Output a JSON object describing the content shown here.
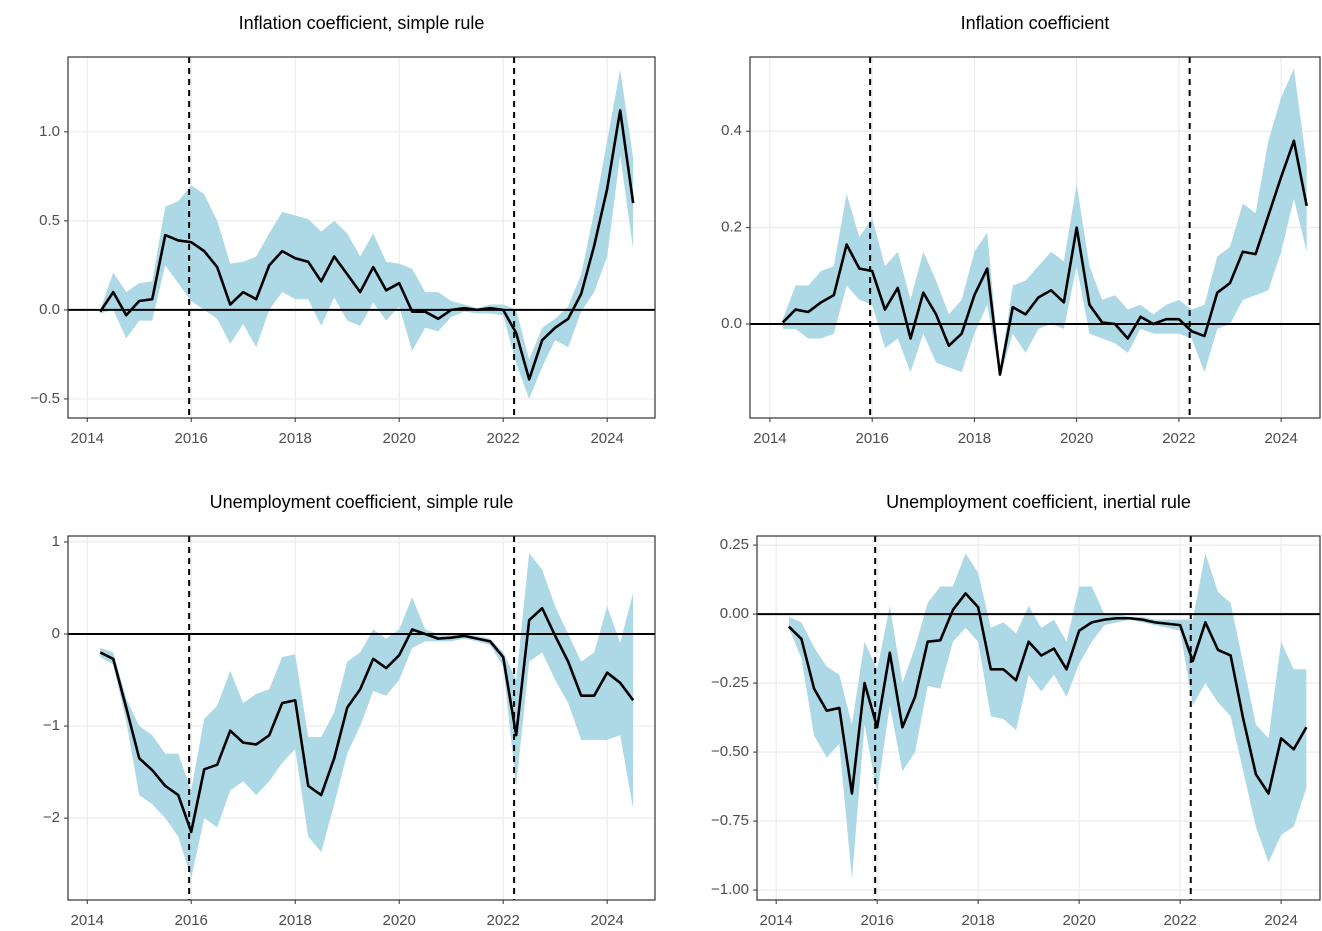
{
  "chart_data": [
    {
      "type": "line",
      "title": "Inflation coefficient, simple rule",
      "x": [
        2014.25,
        2014.5,
        2014.75,
        2015,
        2015.25,
        2015.5,
        2015.75,
        2016,
        2016.25,
        2016.5,
        2016.75,
        2017,
        2017.25,
        2017.5,
        2017.75,
        2018,
        2018.25,
        2018.5,
        2018.75,
        2019,
        2019.25,
        2019.5,
        2019.75,
        2020,
        2020.25,
        2020.5,
        2020.75,
        2021,
        2021.25,
        2021.5,
        2021.75,
        2022,
        2022.25,
        2022.5,
        2022.75,
        2023,
        2023.25,
        2023.5,
        2023.75,
        2024,
        2024.25,
        2024.5
      ],
      "values": [
        -0.01,
        0.1,
        -0.03,
        0.05,
        0.06,
        0.42,
        0.39,
        0.38,
        0.33,
        0.24,
        0.03,
        0.1,
        0.06,
        0.25,
        0.33,
        0.29,
        0.27,
        0.16,
        0.3,
        0.2,
        0.1,
        0.24,
        0.11,
        0.15,
        -0.01,
        -0.01,
        -0.05,
        0,
        0.01,
        0,
        0.01,
        0,
        -0.13,
        -0.39,
        -0.17,
        -0.1,
        -0.05,
        0.09,
        0.36,
        0.68,
        1.12,
        0.6
      ],
      "lower": [
        -0.02,
        0,
        -0.16,
        -0.06,
        -0.06,
        0.25,
        0.15,
        0.05,
        0,
        -0.05,
        -0.19,
        -0.08,
        -0.21,
        0,
        0.1,
        0.06,
        0.06,
        -0.09,
        0.07,
        -0.06,
        -0.09,
        0.04,
        -0.06,
        0.02,
        -0.23,
        -0.1,
        -0.12,
        -0.04,
        -0.01,
        -0.02,
        -0.02,
        -0.03,
        -0.3,
        -0.5,
        -0.32,
        -0.17,
        -0.21,
        -0.01,
        0.1,
        0.3,
        0.87,
        0.34
      ],
      "upper": [
        0,
        0.21,
        0.1,
        0.15,
        0.16,
        0.58,
        0.61,
        0.7,
        0.65,
        0.5,
        0.26,
        0.27,
        0.3,
        0.43,
        0.55,
        0.53,
        0.51,
        0.44,
        0.5,
        0.43,
        0.3,
        0.43,
        0.27,
        0.26,
        0.23,
        0.1,
        0.1,
        0.05,
        0.03,
        0.01,
        0.03,
        0.03,
        0,
        -0.28,
        -0.1,
        -0.05,
        0.02,
        0.2,
        0.55,
        0.95,
        1.35,
        0.85
      ],
      "color": "#000000",
      "band_color": "#add8e6",
      "vlines": [
        2015.96,
        2022.21
      ],
      "hline": 0,
      "xlim": [
        2013.63,
        2024.92
      ],
      "xticks": [
        2014,
        2016,
        2018,
        2020,
        2022,
        2024
      ],
      "ylim": [
        -0.607,
        1.42
      ],
      "yticks": [
        {
          "value": -0.5,
          "label": "−0.5"
        },
        {
          "value": 0,
          "label": "0.0"
        },
        0.5,
        {
          "value": 1,
          "label": "1.0"
        }
      ],
      "grid": true
    },
    {
      "type": "line",
      "title": "Inflation coefficient",
      "x": [
        2014.25,
        2014.5,
        2014.75,
        2015,
        2015.25,
        2015.5,
        2015.75,
        2016,
        2016.25,
        2016.5,
        2016.75,
        2017,
        2017.25,
        2017.5,
        2017.75,
        2018,
        2018.25,
        2018.5,
        2018.75,
        2019,
        2019.25,
        2019.5,
        2019.75,
        2020,
        2020.25,
        2020.5,
        2020.75,
        2021,
        2021.25,
        2021.5,
        2021.75,
        2022,
        2022.25,
        2022.5,
        2022.75,
        2023,
        2023.25,
        2023.5,
        2023.75,
        2024,
        2024.25,
        2024.5
      ],
      "values": [
        0.003,
        0.03,
        0.025,
        0.045,
        0.06,
        0.165,
        0.115,
        0.11,
        0.03,
        0.075,
        -0.03,
        0.065,
        0.02,
        -0.045,
        -0.02,
        0.06,
        0.115,
        -0.105,
        0.035,
        0.02,
        0.055,
        0.07,
        0.045,
        0.2,
        0.04,
        0.003,
        0,
        -0.03,
        0.015,
        0,
        0.01,
        0.01,
        -0.015,
        -0.025,
        0.065,
        0.085,
        0.15,
        0.145,
        0.225,
        0.305,
        0.38,
        0.245
      ],
      "lower": [
        -0.01,
        -0.01,
        -0.03,
        -0.03,
        -0.02,
        0.08,
        0.05,
        0.04,
        -0.05,
        -0.03,
        -0.1,
        -0.02,
        -0.08,
        -0.09,
        -0.1,
        -0.02,
        0.04,
        -0.11,
        -0.02,
        -0.06,
        -0.01,
        0,
        -0.01,
        0.12,
        -0.02,
        -0.03,
        -0.04,
        -0.06,
        -0.01,
        -0.02,
        -0.02,
        -0.02,
        -0.03,
        -0.1,
        -0.01,
        0,
        0.05,
        0.06,
        0.07,
        0.15,
        0.26,
        0.15
      ],
      "upper": [
        0.01,
        0.08,
        0.08,
        0.11,
        0.12,
        0.27,
        0.18,
        0.22,
        0.12,
        0.15,
        0.05,
        0.15,
        0.09,
        0.02,
        0.05,
        0.15,
        0.19,
        -0.1,
        0.08,
        0.09,
        0.12,
        0.15,
        0.13,
        0.29,
        0.12,
        0.05,
        0.06,
        0.03,
        0.04,
        0.02,
        0.04,
        0.05,
        0.03,
        0.04,
        0.14,
        0.16,
        0.25,
        0.23,
        0.38,
        0.47,
        0.53,
        0.33
      ],
      "color": "#000000",
      "band_color": "#add8e6",
      "vlines": [
        2015.96,
        2022.21
      ],
      "hline": 0,
      "xlim": [
        2013.61,
        2024.76
      ],
      "xticks": [
        2014,
        2016,
        2018,
        2020,
        2022,
        2024
      ],
      "ylim": [
        -0.195,
        0.554
      ],
      "yticks": [
        {
          "value": 0,
          "label": "0.0"
        },
        0.2,
        0.4
      ],
      "grid": true
    },
    {
      "type": "line",
      "title": "Unemployment coefficient, simple rule",
      "x": [
        2014.25,
        2014.5,
        2014.75,
        2015,
        2015.25,
        2015.5,
        2015.75,
        2016,
        2016.25,
        2016.5,
        2016.75,
        2017,
        2017.25,
        2017.5,
        2017.75,
        2018,
        2018.25,
        2018.5,
        2018.75,
        2019,
        2019.25,
        2019.5,
        2019.75,
        2020,
        2020.25,
        2020.5,
        2020.75,
        2021,
        2021.25,
        2021.5,
        2021.75,
        2022,
        2022.25,
        2022.5,
        2022.75,
        2023,
        2023.25,
        2023.5,
        2023.75,
        2024,
        2024.25,
        2024.5
      ],
      "values": [
        -0.2,
        -0.27,
        -0.8,
        -1.35,
        -1.48,
        -1.65,
        -1.75,
        -2.15,
        -1.47,
        -1.42,
        -1.05,
        -1.18,
        -1.2,
        -1.1,
        -0.75,
        -0.72,
        -1.65,
        -1.75,
        -1.35,
        -0.8,
        -0.6,
        -0.27,
        -0.37,
        -0.23,
        0.05,
        0,
        -0.05,
        -0.04,
        -0.02,
        -0.05,
        -0.08,
        -0.25,
        -1.1,
        0.15,
        0.28,
        -0.02,
        -0.3,
        -0.67,
        -0.67,
        -0.42,
        -0.53,
        -0.72
      ],
      "lower": [
        -0.25,
        -0.33,
        -0.95,
        -1.75,
        -1.85,
        -2,
        -2.2,
        -2.65,
        -2,
        -2.1,
        -1.7,
        -1.6,
        -1.75,
        -1.6,
        -1.4,
        -1.25,
        -2.2,
        -2.37,
        -1.85,
        -1.3,
        -1,
        -0.62,
        -0.67,
        -0.5,
        -0.15,
        -0.08,
        -0.08,
        -0.08,
        -0.05,
        -0.08,
        -0.12,
        -0.35,
        -1.65,
        -0.3,
        -0.2,
        -0.5,
        -0.75,
        -1.15,
        -1.15,
        -1.15,
        -1.1,
        -1.9
      ],
      "upper": [
        -0.15,
        -0.2,
        -0.7,
        -1,
        -1.1,
        -1.3,
        -1.3,
        -1.7,
        -0.92,
        -0.78,
        -0.4,
        -0.75,
        -0.65,
        -0.6,
        -0.25,
        -0.22,
        -1.12,
        -1.12,
        -0.85,
        -0.3,
        -0.2,
        0.05,
        -0.05,
        0.05,
        0.4,
        0.05,
        0,
        0,
        0.01,
        -0.02,
        -0.05,
        -0.2,
        -0.5,
        0.88,
        0.7,
        0.3,
        0,
        -0.3,
        -0.2,
        0.3,
        -0.1,
        0.45
      ],
      "color": "#000000",
      "band_color": "#add8e6",
      "vlines": [
        2015.96,
        2022.21
      ],
      "hline": 0,
      "xlim": [
        2013.63,
        2024.92
      ],
      "xticks": [
        2014,
        2016,
        2018,
        2020,
        2022,
        2024
      ],
      "ylim": [
        -2.89,
        1.065
      ],
      "yticks": [
        {
          "value": -2,
          "label": "−2"
        },
        {
          "value": -1,
          "label": "−1"
        },
        0,
        1
      ],
      "grid": true
    },
    {
      "type": "line",
      "title": "Unemployment coefficient, inertial rule",
      "x": [
        2014.25,
        2014.5,
        2014.75,
        2015,
        2015.25,
        2015.5,
        2015.75,
        2016,
        2016.25,
        2016.5,
        2016.75,
        2017,
        2017.25,
        2017.5,
        2017.75,
        2018,
        2018.25,
        2018.5,
        2018.75,
        2019,
        2019.25,
        2019.5,
        2019.75,
        2020,
        2020.25,
        2020.5,
        2020.75,
        2021,
        2021.25,
        2021.5,
        2021.75,
        2022,
        2022.25,
        2022.5,
        2022.75,
        2023,
        2023.25,
        2023.5,
        2023.75,
        2024,
        2024.25,
        2024.5
      ],
      "values": [
        -0.045,
        -0.09,
        -0.27,
        -0.35,
        -0.34,
        -0.65,
        -0.25,
        -0.41,
        -0.14,
        -0.41,
        -0.3,
        -0.1,
        -0.095,
        0.015,
        0.075,
        0.025,
        -0.2,
        -0.2,
        -0.24,
        -0.1,
        -0.15,
        -0.125,
        -0.2,
        -0.06,
        -0.03,
        -0.02,
        -0.015,
        -0.015,
        -0.02,
        -0.03,
        -0.035,
        -0.04,
        -0.17,
        -0.03,
        -0.13,
        -0.15,
        -0.38,
        -0.58,
        -0.65,
        -0.45,
        -0.49,
        -0.41
      ],
      "lower": [
        -0.05,
        -0.16,
        -0.44,
        -0.52,
        -0.47,
        -0.96,
        -0.4,
        -0.65,
        -0.33,
        -0.57,
        -0.5,
        -0.26,
        -0.27,
        -0.1,
        -0.05,
        -0.1,
        -0.37,
        -0.38,
        -0.42,
        -0.22,
        -0.28,
        -0.22,
        -0.3,
        -0.18,
        -0.1,
        -0.04,
        -0.03,
        -0.02,
        -0.03,
        -0.04,
        -0.05,
        -0.06,
        -0.33,
        -0.25,
        -0.32,
        -0.37,
        -0.57,
        -0.77,
        -0.9,
        -0.8,
        -0.77,
        -0.63
      ],
      "upper": [
        -0.01,
        -0.03,
        -0.12,
        -0.19,
        -0.22,
        -0.4,
        -0.1,
        -0.2,
        0.03,
        -0.25,
        -0.12,
        0.04,
        0.1,
        0.1,
        0.22,
        0.15,
        -0.05,
        -0.03,
        -0.07,
        0.03,
        -0.05,
        -0.02,
        -0.1,
        0.1,
        0.1,
        0,
        0,
        -0.01,
        -0.01,
        -0.02,
        -0.02,
        -0.02,
        -0.02,
        0.22,
        0.08,
        0.04,
        -0.18,
        -0.4,
        -0.45,
        -0.1,
        -0.2,
        -0.2
      ],
      "color": "#000000",
      "band_color": "#add8e6",
      "vlines": [
        2015.96,
        2022.21
      ],
      "hline": 0,
      "xlim": [
        2013.62,
        2024.77
      ],
      "xticks": [
        2014,
        2016,
        2018,
        2020,
        2022,
        2024
      ],
      "ylim": [
        -1.036,
        0.283
      ],
      "yticks": [
        {
          "value": -1,
          "label": "−1.00"
        },
        {
          "value": -0.75,
          "label": "−0.75"
        },
        {
          "value": -0.5,
          "label": "−0.50"
        },
        {
          "value": -0.25,
          "label": "−0.25"
        },
        {
          "value": 0,
          "label": "0.00"
        },
        0.25
      ],
      "grid": true
    }
  ]
}
